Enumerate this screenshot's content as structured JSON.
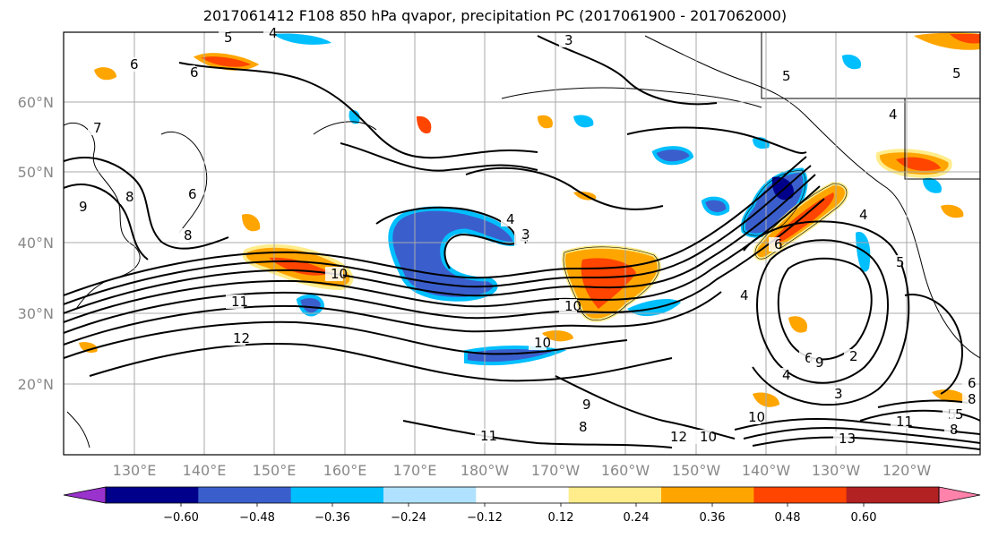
{
  "title": "2017061412 F108 850 hPa qvapor, precipitation PC (2017061900 - 2017062000)",
  "lat_labels": [
    "60°N",
    "50°N",
    "40°N",
    "30°N",
    "20°N"
  ],
  "lon_labels": [
    "130°E",
    "140°E",
    "150°E",
    "160°E",
    "170°E",
    "180°W",
    "170°W",
    "160°W",
    "150°W",
    "140°W",
    "130°W",
    "120°W"
  ],
  "contour_labels": [
    "5",
    "4",
    "3",
    "6",
    "6",
    "5",
    "4",
    "5",
    "8",
    "7",
    "6",
    "9",
    "8",
    "4",
    "10",
    "11",
    "12",
    "4",
    "3",
    "10",
    "10",
    "9",
    "8",
    "4",
    "5",
    "6",
    "4",
    "6",
    "3",
    "2",
    "4",
    "5",
    "6",
    "8",
    "8",
    "10",
    "11",
    "12",
    "13",
    "9",
    "10",
    "11",
    "5"
  ],
  "colorbar": {
    "colors": [
      "#9a32cd",
      "#00008b",
      "#3a5fcd",
      "#00bfff",
      "#b0e2ff",
      "#ffffff",
      "#ffec8b",
      "#ffa500",
      "#ff4500",
      "#b22222",
      "#ff82ab"
    ],
    "ticks": [
      "−0.60",
      "−0.48",
      "−0.36",
      "−0.24",
      "−0.12",
      "0.12",
      "0.24",
      "0.36",
      "0.48",
      "0.60"
    ]
  }
}
